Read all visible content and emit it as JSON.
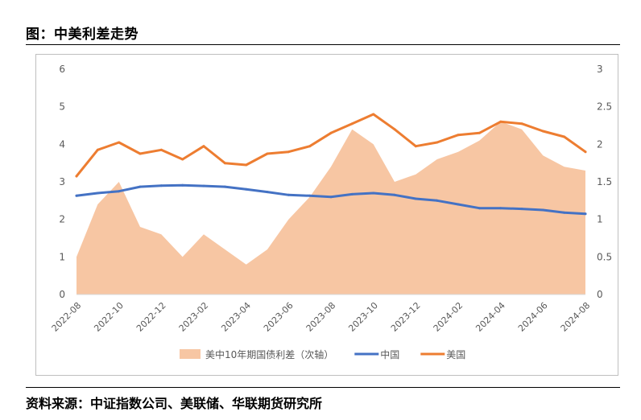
{
  "header": {
    "title": "图：中美利差走势"
  },
  "footer": {
    "source": "资料来源：中证指数公司、美联储、华联期货研究所"
  },
  "chart_data": {
    "type": "line",
    "x": [
      "2022-08",
      "2022-09",
      "2022-10",
      "2022-11",
      "2022-12",
      "2023-01",
      "2023-02",
      "2023-03",
      "2023-04",
      "2023-05",
      "2023-06",
      "2023-07",
      "2023-08",
      "2023-09",
      "2023-10",
      "2023-11",
      "2023-12",
      "2024-01",
      "2024-02",
      "2024-03",
      "2024-04",
      "2024-05",
      "2024-06",
      "2024-07",
      "2024-08"
    ],
    "x_tick_labels": [
      "2022-08",
      "2022-10",
      "2022-12",
      "2023-02",
      "2023-04",
      "2023-06",
      "2023-08",
      "2023-10",
      "2023-12",
      "2024-02",
      "2024-04",
      "2024-06",
      "2024-08"
    ],
    "series": [
      {
        "name": "美中10年期国债利差（次轴）",
        "kind": "area",
        "axis": "right",
        "color": "#f7c6a3",
        "values": [
          0.5,
          1.2,
          1.5,
          0.9,
          0.8,
          0.5,
          0.8,
          0.6,
          0.4,
          0.6,
          1.0,
          1.3,
          1.7,
          2.2,
          2.0,
          1.5,
          1.6,
          1.8,
          1.9,
          2.05,
          2.3,
          2.2,
          1.85,
          1.7,
          1.65
        ]
      },
      {
        "name": "中国",
        "kind": "line",
        "axis": "left",
        "color": "#4472c4",
        "values": [
          2.63,
          2.7,
          2.75,
          2.87,
          2.9,
          2.91,
          2.89,
          2.87,
          2.8,
          2.73,
          2.65,
          2.63,
          2.6,
          2.67,
          2.7,
          2.65,
          2.55,
          2.5,
          2.4,
          2.3,
          2.3,
          2.28,
          2.25,
          2.18,
          2.15
        ]
      },
      {
        "name": "美国",
        "kind": "line",
        "axis": "left",
        "color": "#ed7d31",
        "values": [
          3.15,
          3.85,
          4.05,
          3.75,
          3.85,
          3.6,
          3.95,
          3.5,
          3.45,
          3.75,
          3.8,
          3.95,
          4.3,
          4.55,
          4.8,
          4.4,
          3.95,
          4.05,
          4.25,
          4.3,
          4.6,
          4.55,
          4.35,
          4.2,
          3.8
        ]
      }
    ],
    "y_left": {
      "ylim": [
        0,
        6
      ],
      "ticks": [
        "0",
        "1",
        "2",
        "3",
        "4",
        "5",
        "6"
      ]
    },
    "y_right": {
      "ylim": [
        0,
        3
      ],
      "ticks": [
        "0",
        "0.5",
        "1",
        "1.5",
        "2",
        "2.5",
        "3"
      ]
    },
    "legend": {
      "placement": "bottom"
    },
    "grid": false
  }
}
